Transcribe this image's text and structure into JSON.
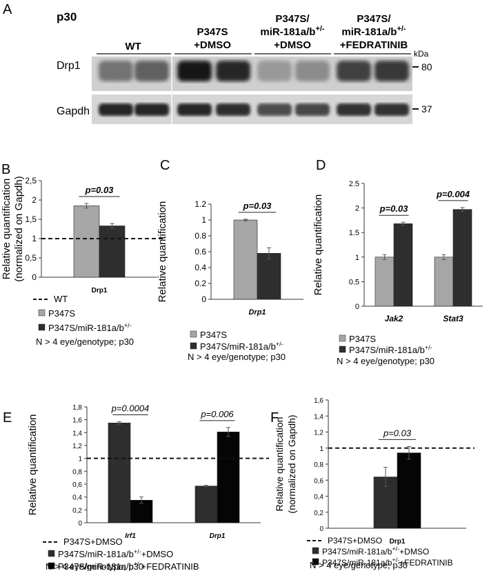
{
  "figure": {
    "panel_a": {
      "letter": "A",
      "age": "p30",
      "groups": [
        {
          "lines": [
            "WT"
          ]
        },
        {
          "lines": [
            "P347S",
            "+DMSO"
          ]
        },
        {
          "lines": [
            "P347S/",
            "miR-181a/b+/-",
            "+DMSO"
          ]
        },
        {
          "lines": [
            "P347S/",
            "miR-181a/b+/-",
            "+FEDRATINIB"
          ]
        }
      ],
      "kda_label": "kDa",
      "blots": [
        {
          "label": "Drp1",
          "marker": "80"
        },
        {
          "label": "Gapdh",
          "marker": "37"
        }
      ]
    }
  },
  "chart_data": [
    {
      "type": "bar",
      "panel": "B",
      "categories": [
        "Drp1"
      ],
      "series": [
        {
          "name": "P347S",
          "values": [
            1.85
          ],
          "errors": [
            0.06
          ],
          "color": "#a6a6a6"
        },
        {
          "name": "P347S/miR-181a/b+/-",
          "values": [
            1.33
          ],
          "errors": [
            0.06
          ],
          "color": "#2e2e2e"
        }
      ],
      "ylabel": [
        "Relative quantification",
        "(normalized on Gapdh)"
      ],
      "ylim": [
        0,
        2.5
      ],
      "yticks": [
        "0",
        "0,5",
        "1",
        "1,5",
        "2",
        "2,5"
      ],
      "reference_line": 1,
      "reference_label": "WT",
      "pvalues": [
        "p=0.03"
      ],
      "note": "N > 4 eye/genotype; p30"
    },
    {
      "type": "bar",
      "panel": "C",
      "categories": [
        "Drp1"
      ],
      "series": [
        {
          "name": "P347S",
          "values": [
            1.0
          ],
          "errors": [
            0.01
          ],
          "color": "#a6a6a6"
        },
        {
          "name": "P347S/miR-181a/b+/-",
          "values": [
            0.58
          ],
          "errors": [
            0.07
          ],
          "color": "#2e2e2e"
        }
      ],
      "ylabel": [
        "Relative quantification"
      ],
      "ylim": [
        0,
        1.2
      ],
      "yticks": [
        "0",
        "0.2",
        "0.4",
        "0.6",
        "0.8",
        "1",
        "1.2"
      ],
      "pvalues": [
        "p=0.03"
      ],
      "note": "N > 4 eye/genotype; p30"
    },
    {
      "type": "bar",
      "panel": "D",
      "categories": [
        "Jak2",
        "Stat3"
      ],
      "series": [
        {
          "name": "P347S",
          "values": [
            1.0,
            1.0
          ],
          "errors": [
            0.05,
            0.05
          ],
          "color": "#a6a6a6"
        },
        {
          "name": "P347S/miR-181a/b+/-",
          "values": [
            1.68,
            1.97
          ],
          "errors": [
            0.03,
            0.04
          ],
          "color": "#2e2e2e"
        }
      ],
      "ylabel": [
        "Relative quantification"
      ],
      "ylim": [
        0,
        2.5
      ],
      "yticks": [
        "0",
        "0.5",
        "1",
        "1.5",
        "2",
        "2.5"
      ],
      "pvalues": [
        "p=0.03",
        "p=0.004"
      ],
      "note": "N > 4 eye/genotype; p30"
    },
    {
      "type": "bar",
      "panel": "E",
      "categories": [
        "Irf1",
        "Drp1"
      ],
      "series": [
        {
          "name": "P347S/miR-181a/b+/-+DMSO",
          "values": [
            1.55,
            0.57
          ],
          "errors": [
            0.02,
            0.01
          ],
          "color": "#2e2e2e"
        },
        {
          "name": "P347S/miR-181a/b+/-+FEDRATINIB",
          "values": [
            0.35,
            1.41
          ],
          "errors": [
            0.05,
            0.07
          ],
          "color": "#050505"
        }
      ],
      "ylabel": [
        "Relative quantification"
      ],
      "ylim": [
        0,
        1.8
      ],
      "yticks": [
        "0",
        "0,2",
        "0,4",
        "0,6",
        "0,8",
        "1",
        "1,2",
        "1,4",
        "1,6",
        "1,8"
      ],
      "reference_line": 1,
      "reference_label": "P347S+DMSO",
      "pvalues": [
        "p=0.0004",
        "p=0.006"
      ],
      "note": "N > 4 eye/genotype; p30"
    },
    {
      "type": "bar",
      "panel": "F",
      "categories": [
        "Drp1"
      ],
      "series": [
        {
          "name": "P347S/miR-181a/b+/-+DMSO",
          "values": [
            0.64
          ],
          "errors": [
            0.12
          ],
          "color": "#2e2e2e"
        },
        {
          "name": "P347S/miR-181a/b+/-+FEDRATINIB",
          "values": [
            0.94
          ],
          "errors": [
            0.08
          ],
          "color": "#050505"
        }
      ],
      "ylabel": [
        "Relative quantification",
        "(normalized on Gapdh)"
      ],
      "ylim": [
        0,
        1.6
      ],
      "yticks": [
        "0",
        "0,2",
        "0,4",
        "0,6",
        "0,8",
        "1",
        "1,2",
        "1,4",
        "1,6"
      ],
      "reference_line": 1,
      "reference_label": "P347S+DMSO",
      "pvalues": [
        "p=0.03"
      ],
      "note": "N > 4 eye/genotype; p30"
    }
  ]
}
